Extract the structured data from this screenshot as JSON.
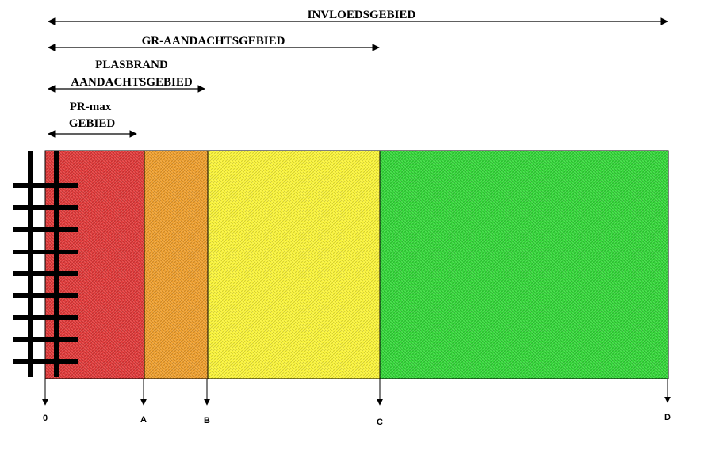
{
  "headings": {
    "invloed": "INVLOEDSGEBIED",
    "gr": "GR-AANDACHTSGEBIED",
    "plasbrand_line1": "PLASBRAND",
    "plasbrand_line2": "AANDACHTSGEBIED",
    "prmax_line1": "PR-max",
    "prmax_line2": "GEBIED"
  },
  "points": {
    "zero": "0",
    "a": "A",
    "b": "B",
    "c": "C",
    "d": "D"
  },
  "zones": [
    {
      "id": "red",
      "color": "#e23b3b"
    },
    {
      "id": "orange",
      "color": "#f0a02e"
    },
    {
      "id": "yellow",
      "color": "#fbf53a"
    },
    {
      "id": "green",
      "color": "#35d83a"
    }
  ]
}
